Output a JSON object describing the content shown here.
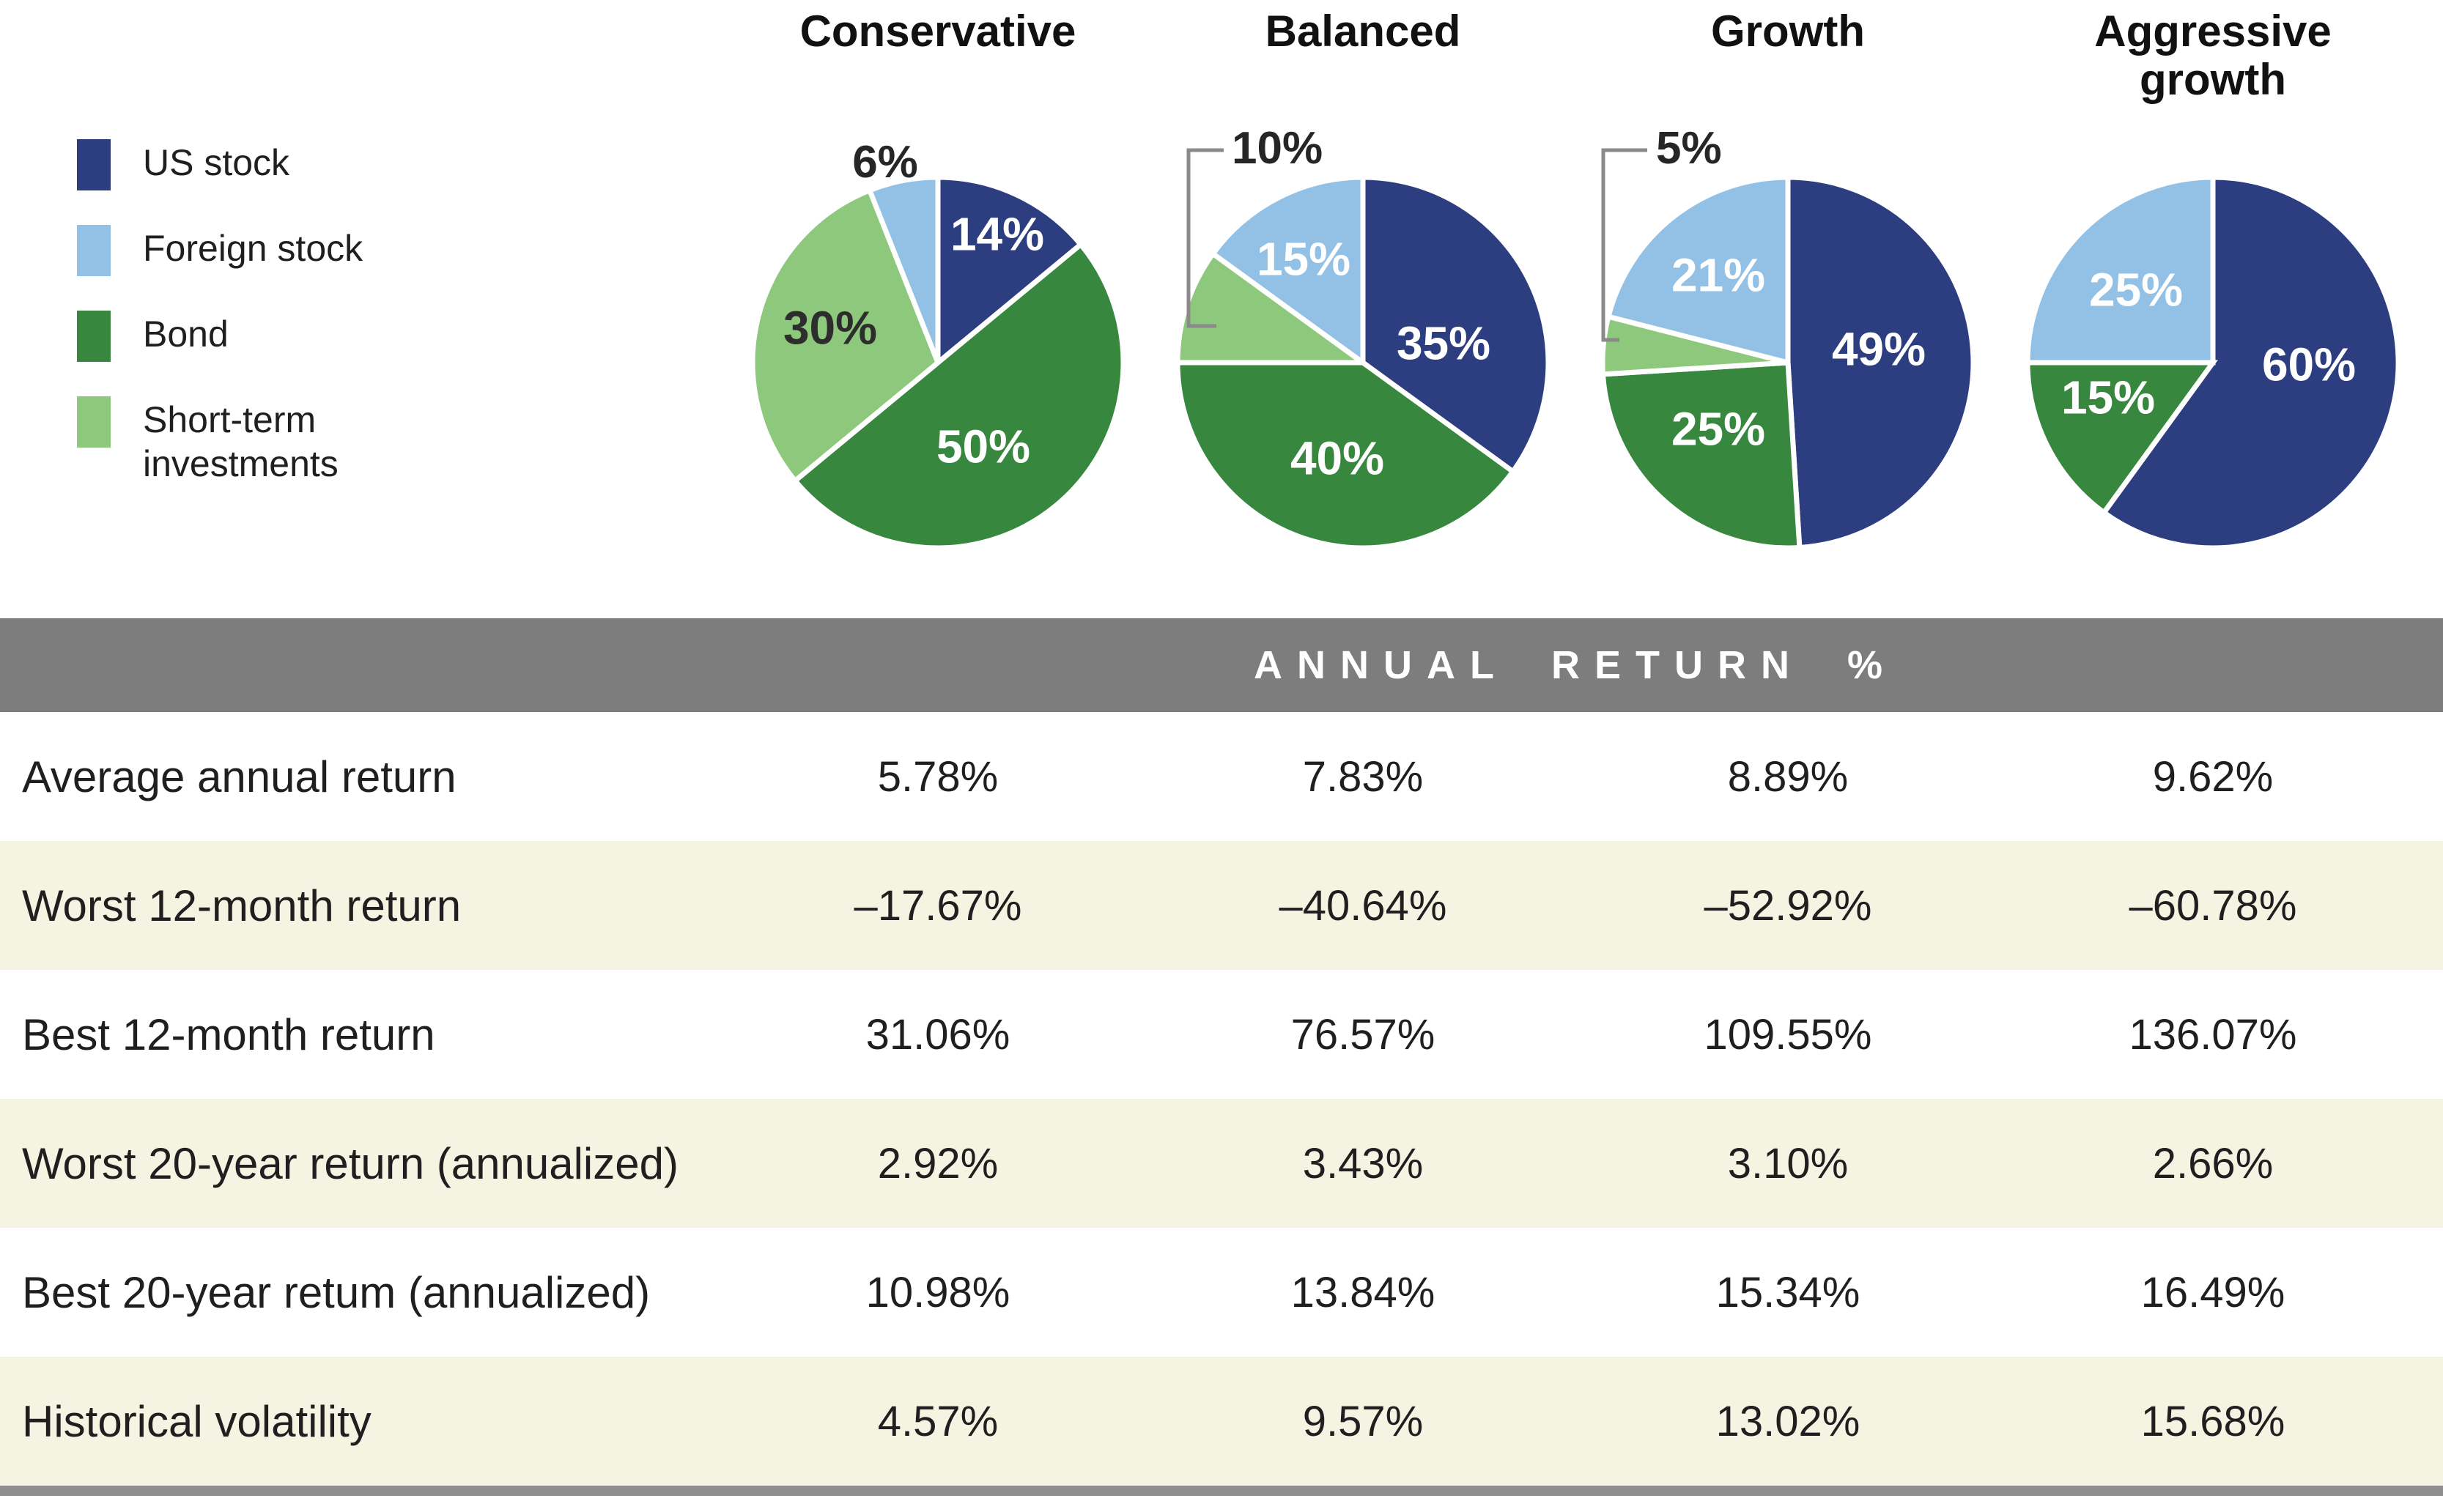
{
  "legend": {
    "items": [
      {
        "label": "US stock",
        "color": "#2d3e80"
      },
      {
        "label": "Foreign stock",
        "color": "#93c0e5"
      },
      {
        "label": "Bond",
        "color": "#37873e"
      },
      {
        "label": "Short-term investments",
        "color": "#8ec87c"
      }
    ]
  },
  "chart_data": {
    "type": "pie",
    "unit": "percent of portfolio",
    "legend_entries": [
      "US stock",
      "Foreign stock",
      "Bond",
      "Short-term investments"
    ],
    "series_colors": {
      "US stock": "#2d3e80",
      "Foreign stock": "#93c0e5",
      "Bond": "#37873e",
      "Short-term investments": "#8ec87c"
    },
    "callout_color": "#8a8a8a",
    "pies": [
      {
        "title": "Conservative",
        "slices": [
          {
            "name": "US stock",
            "value": 14,
            "display": "14%",
            "placement": "inside",
            "lpos": [
              351,
              259
            ]
          },
          {
            "name": "Bond",
            "value": 50,
            "display": "50%",
            "placement": "inside",
            "lpos": [
              332,
              549
            ]
          },
          {
            "name": "Short-term investments",
            "value": 30,
            "display": "30%",
            "placement": "inside",
            "lpos": [
              123,
              387
            ],
            "text_color": "#2d2d2d"
          },
          {
            "name": "Foreign stock",
            "value": 6,
            "display": "6%",
            "placement": "outside",
            "lpos": [
              198,
              182
            ]
          }
        ]
      },
      {
        "title": "Balanced",
        "slices": [
          {
            "name": "US stock",
            "value": 35,
            "display": "35%",
            "placement": "inside",
            "lpos": [
              380,
              408
            ]
          },
          {
            "name": "Bond",
            "value": 40,
            "display": "40%",
            "placement": "inside",
            "lpos": [
              235,
              565
            ]
          },
          {
            "name": "Short-term investments",
            "value": 10,
            "display": "10%",
            "placement": "callout",
            "lpos": [
              91,
              163
            ],
            "bracket": "80,145 32,145 32,385 70,385"
          },
          {
            "name": "Foreign stock",
            "value": 15,
            "display": "15%",
            "placement": "inside",
            "lpos": [
              189,
              293
            ]
          }
        ]
      },
      {
        "title": "Growth",
        "slices": [
          {
            "name": "US stock",
            "value": 49,
            "display": "49%",
            "placement": "inside",
            "lpos": [
              394,
              416
            ]
          },
          {
            "name": "Bond",
            "value": 25,
            "display": "25%",
            "placement": "inside",
            "lpos": [
              175,
              525
            ]
          },
          {
            "name": "Short-term investments",
            "value": 5,
            "display": "5%",
            "placement": "callout",
            "lpos": [
              90,
              163
            ],
            "bracket": "78,145 18,145 18,404 40,404"
          },
          {
            "name": "Foreign stock",
            "value": 21,
            "display": "21%",
            "placement": "inside",
            "lpos": [
              175,
              315
            ]
          }
        ]
      },
      {
        "title": "Aggressive growth",
        "slices": [
          {
            "name": "US stock",
            "value": 60,
            "display": "60%",
            "placement": "inside",
            "lpos": [
              401,
              437
            ]
          },
          {
            "name": "Bond",
            "value": 15,
            "display": "15%",
            "placement": "inside",
            "lpos": [
              127,
              482
            ]
          },
          {
            "name": "Foreign stock",
            "value": 25,
            "display": "25%",
            "placement": "inside",
            "lpos": [
              165,
              335
            ]
          }
        ]
      }
    ]
  },
  "table": {
    "header": "ANNUAL RETURN %",
    "columns": [
      "Conservative",
      "Balanced",
      "Growth",
      "Aggressive growth"
    ],
    "rows": [
      {
        "label": "Average annual return",
        "values": [
          "5.78%",
          "7.83%",
          "8.89%",
          "9.62%"
        ]
      },
      {
        "label": "Worst 12-month return",
        "values": [
          "–17.67%",
          "–40.64%",
          "–52.92%",
          "–60.78%"
        ]
      },
      {
        "label": "Best 12-month return",
        "values": [
          "31.06%",
          "76.57%",
          "109.55%",
          "136.07%"
        ]
      },
      {
        "label": "Worst 20-year return (annualized)",
        "values": [
          "2.92%",
          "3.43%",
          "3.10%",
          "2.66%"
        ]
      },
      {
        "label": "Best 20-year retum (annualized)",
        "values": [
          "10.98%",
          "13.84%",
          "15.34%",
          "16.49%"
        ]
      },
      {
        "label": "Historical volatility",
        "values": [
          "4.57%",
          "9.57%",
          "13.02%",
          "15.68%"
        ]
      }
    ]
  },
  "style": {
    "band_bg": "#7d7d7d",
    "row_alt_bg": "#f5f3e2",
    "bottom_bar": "#8e8e8e"
  }
}
